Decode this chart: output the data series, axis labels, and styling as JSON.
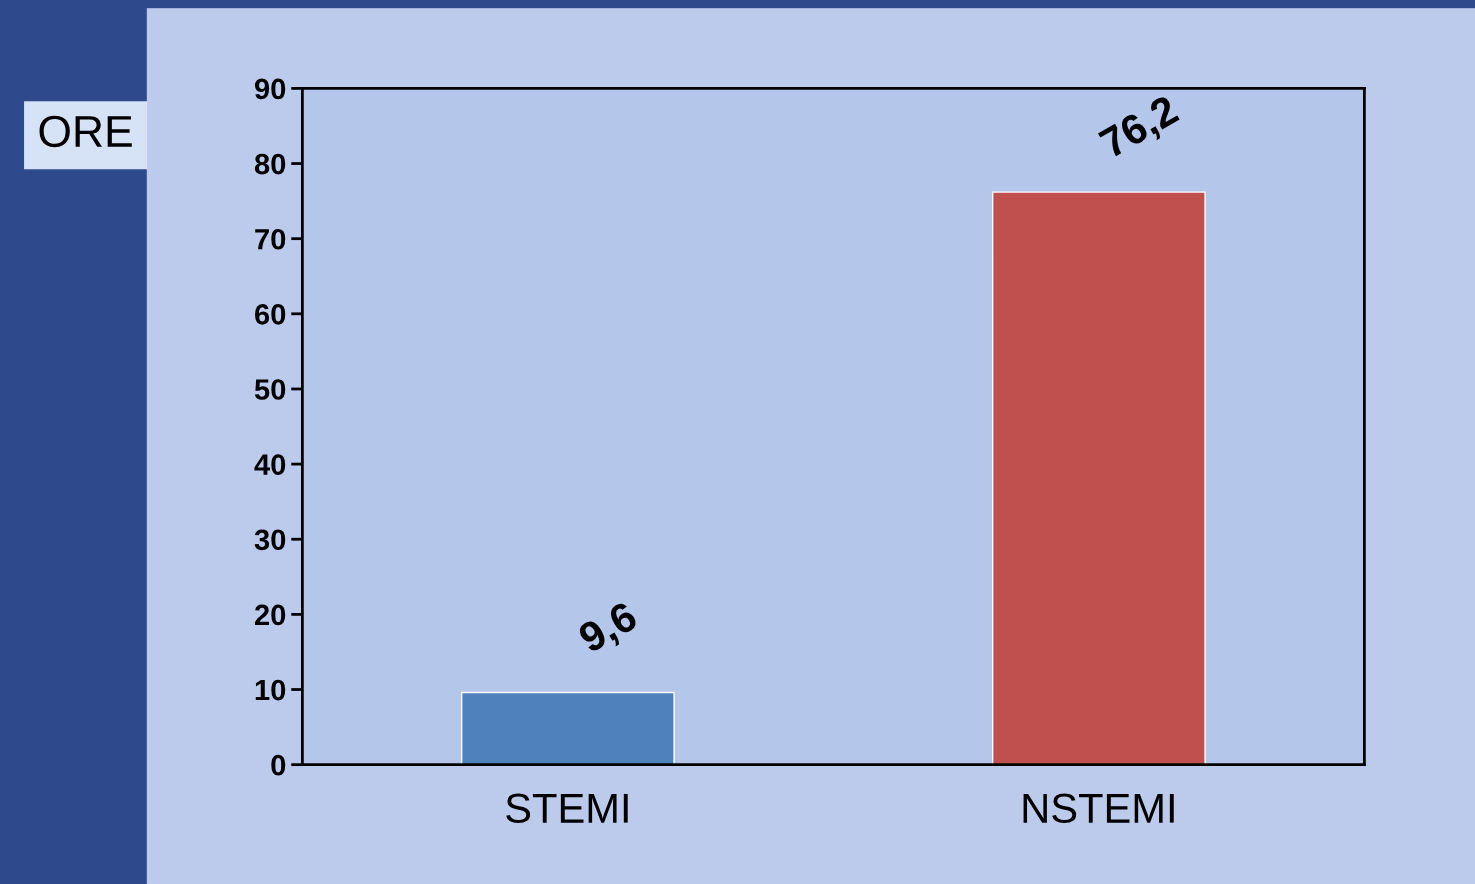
{
  "chart_data": {
    "type": "bar",
    "ylabel": "ORE",
    "categories": [
      "STEMI",
      "NSTEMI"
    ],
    "values": [
      9.6,
      76.2
    ],
    "colors": [
      "#4f81bd",
      "#c0504d"
    ],
    "value_labels": [
      "9,6",
      "76,2"
    ],
    "ylim": [
      0,
      90
    ],
    "yticks": [
      0,
      10,
      20,
      30,
      40,
      50,
      60,
      70,
      80,
      90
    ],
    "grid": false,
    "legend": false
  }
}
